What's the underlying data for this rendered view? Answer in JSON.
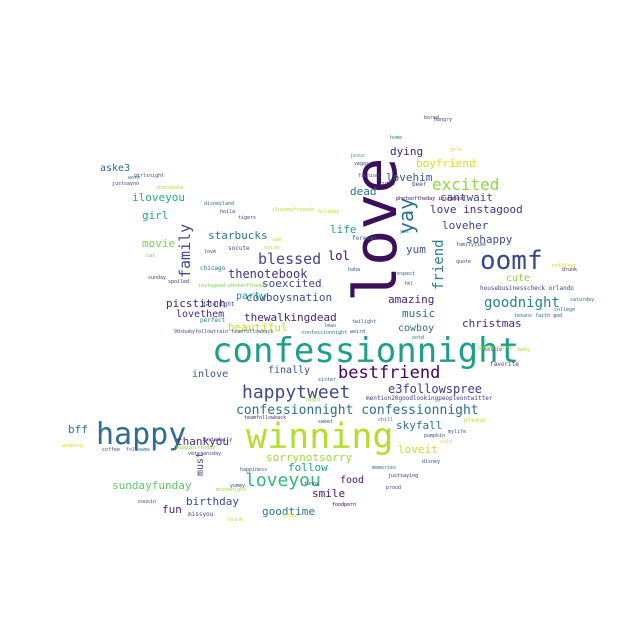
{
  "words": [
    {
      "text": "love",
      "color": "#3b0f59",
      "rot": -90
    },
    {
      "text": "confessionnight",
      "color": "#1f9e89",
      "rot": 0
    },
    {
      "text": "winning",
      "color": "#b5de2b",
      "rot": 0
    },
    {
      "text": "happy",
      "color": "#2d6d8e",
      "rot": 0
    },
    {
      "text": "oomf",
      "color": "#36488a",
      "rot": 0
    },
    {
      "text": "happytweet",
      "color": "#3e4a89",
      "rot": 0
    },
    {
      "text": "bestfriend",
      "color": "#440154",
      "rot": 0
    },
    {
      "text": "loveyou",
      "color": "#35b779",
      "rot": 0
    },
    {
      "text": "excited",
      "color": "#90d743",
      "rot": 0
    },
    {
      "text": "yay",
      "color": "#2c728e",
      "rot": -90
    },
    {
      "text": "family",
      "color": "#3f4788",
      "rot": -90
    },
    {
      "text": "blessed",
      "color": "#414487",
      "rot": 0
    },
    {
      "text": "friend",
      "color": "#2a788e",
      "rot": -90
    },
    {
      "text": "goodnight",
      "color": "#26828e",
      "rot": 0
    },
    {
      "text": "confessionnight confessionnight",
      "color": "#2e6e8e",
      "rot": 0
    },
    {
      "text": "e3followspree",
      "color": "#443983",
      "rot": 0
    },
    {
      "text": "thenotebook",
      "color": "#46327e",
      "rot": 0
    },
    {
      "text": "dying",
      "color": "#482173",
      "rot": 0
    },
    {
      "text": "boyfriend",
      "color": "#d8e219",
      "rot": 0
    },
    {
      "text": "lovehim",
      "color": "#375b8d",
      "rot": 0
    },
    {
      "text": "cantwait",
      "color": "#3e4989",
      "rot": 0
    },
    {
      "text": "love instagood",
      "color": "#46307e",
      "rot": 0
    },
    {
      "text": "loveher",
      "color": "#404588",
      "rot": 0
    },
    {
      "text": "sohappy",
      "color": "#3e4c8a",
      "rot": 0
    },
    {
      "text": "yum",
      "color": "#3a548c",
      "rot": 0
    },
    {
      "text": "cute",
      "color": "#8bd646",
      "rot": 0
    },
    {
      "text": "lol",
      "color": "#440154",
      "rot": 0
    },
    {
      "text": "life",
      "color": "#1fa187",
      "rot": 0
    },
    {
      "text": "dead",
      "color": "#2d718e",
      "rot": 0
    },
    {
      "text": "soexcited",
      "color": "#404588",
      "rot": 0
    },
    {
      "text": "cowboysnation",
      "color": "#3d4d8a",
      "rot": 0
    },
    {
      "text": "amazing",
      "color": "#482374",
      "rot": 0
    },
    {
      "text": "music",
      "color": "#31668e",
      "rot": 0
    },
    {
      "text": "christmas",
      "color": "#482878",
      "rot": 0
    },
    {
      "text": "cowboy",
      "color": "#2e6f8e",
      "rot": 0
    },
    {
      "text": "thewalkingdead",
      "color": "#482475",
      "rot": 0
    },
    {
      "text": "party",
      "color": "#21918c",
      "rot": 0
    },
    {
      "text": "beautiful",
      "color": "#c2df23",
      "rot": 0
    },
    {
      "text": "picstitch",
      "color": "#481d6f",
      "rot": 0
    },
    {
      "text": "lovethem",
      "color": "#472a7a",
      "rot": 0
    },
    {
      "text": "starbucks",
      "color": "#2a768e",
      "rot": 0
    },
    {
      "text": "movie",
      "color": "#7ad151",
      "rot": 0
    },
    {
      "text": "girl",
      "color": "#20a386",
      "rot": 0
    },
    {
      "text": "iloveyou",
      "color": "#26ad81",
      "rot": 0
    },
    {
      "text": "aske3",
      "color": "#2f6c8e",
      "rot": 0
    },
    {
      "text": "inlove",
      "color": "#3a538b",
      "rot": 0
    },
    {
      "text": "finally",
      "color": "#3b518b",
      "rot": 0
    },
    {
      "text": "skyfall",
      "color": "#2c718e",
      "rot": 0
    },
    {
      "text": "loveit",
      "color": "#c8e020",
      "rot": 0
    },
    {
      "text": "sorrynotsorry",
      "color": "#a0da39",
      "rot": 0
    },
    {
      "text": "follow",
      "color": "#1fa088",
      "rot": 0
    },
    {
      "text": "smile",
      "color": "#471164",
      "rot": 0
    },
    {
      "text": "food",
      "color": "#471365",
      "rot": 0
    },
    {
      "text": "goodtime",
      "color": "#2a788e",
      "rot": 0
    },
    {
      "text": "thankyou",
      "color": "#45337d",
      "rot": 0
    },
    {
      "text": "bff",
      "color": "#2a788e",
      "rot": 0
    },
    {
      "text": "sundayfunday",
      "color": "#5ec962",
      "rot": 0
    },
    {
      "text": "birthday",
      "color": "#3e4a89",
      "rot": 0
    },
    {
      "text": "fun",
      "color": "#481f70",
      "rot": 0
    },
    {
      "text": "must",
      "color": "#424186",
      "rot": -90
    },
    {
      "text": "missyou",
      "color": "#3b528b",
      "rot": 0
    },
    {
      "text": "mention20goodlookingpeopleontwitter",
      "color": "#443983",
      "rot": 0
    },
    {
      "text": "housebusinesscheck orlando",
      "color": "#414487",
      "rot": 0
    },
    {
      "text": "photooftheday instamood",
      "color": "#440154",
      "rot": 0
    },
    {
      "text": "familytime",
      "color": "#3b528b",
      "rot": 0
    },
    {
      "text": "justsayno",
      "color": "#443a83",
      "rot": 0
    },
    {
      "text": "foodporn",
      "color": "#440154",
      "rot": 0
    },
    {
      "text": "favorite",
      "color": "#453781",
      "rot": 0
    },
    {
      "text": "saturday",
      "color": "#2d708e",
      "rot": 0
    },
    {
      "text": "chicago",
      "color": "#2c728e",
      "rot": 0
    },
    {
      "text": "datenight",
      "color": "#3e4989",
      "rot": 0
    },
    {
      "text": "perfect",
      "color": "#27808e",
      "rot": 0
    },
    {
      "text": "forever",
      "color": "#355f8d",
      "rot": 0
    },
    {
      "text": "twilight",
      "color": "#38598c",
      "rot": 0
    },
    {
      "text": "lmao",
      "color": "#2e6e8e",
      "rot": 0
    },
    {
      "text": "instagood photooftheday",
      "color": "#7fd34e",
      "rot": 0
    },
    {
      "text": "90sbabyfollowtrain teamfollowback",
      "color": "#3b528b",
      "rot": 0
    },
    {
      "text": "confessionnight",
      "color": "#2a788e",
      "rot": 0
    },
    {
      "text": "spoiled",
      "color": "#472d7b",
      "rot": 0
    },
    {
      "text": "disneyland",
      "color": "#2d708e",
      "rot": 0
    },
    {
      "text": "tigers",
      "color": "#3f4889",
      "rot": 0
    },
    {
      "text": "socute",
      "color": "#3b528b",
      "rot": 0
    },
    {
      "text": "hoila",
      "color": "#46327e",
      "rot": 0
    },
    {
      "text": "jesus",
      "color": "#27ad81",
      "rot": 0
    },
    {
      "text": "beer",
      "color": "#3f4788",
      "rot": 0
    },
    {
      "text": "cutie",
      "color": "#482576",
      "rot": 0
    },
    {
      "text": "fashion",
      "color": "#3b528b",
      "rot": 0
    },
    {
      "text": "vegas",
      "color": "#404688",
      "rot": 0
    },
    {
      "text": "quote",
      "color": "#3e4989",
      "rot": 0
    },
    {
      "text": "respect",
      "color": "#31688e",
      "rot": 0
    },
    {
      "text": "college",
      "color": "#2c728e",
      "rot": 0
    },
    {
      "text": "texans faith god",
      "color": "#2d708e",
      "rot": 0
    },
    {
      "text": "drunk",
      "color": "#472c7a",
      "rot": 0
    },
    {
      "text": "sister",
      "color": "#3b528b",
      "rot": 0
    },
    {
      "text": "sweet",
      "color": "#3e4a89",
      "rot": 0
    },
    {
      "text": "chill",
      "color": "#2d708e",
      "rot": 0
    },
    {
      "text": "memories",
      "color": "#2e6e8e",
      "rot": 0
    },
    {
      "text": "justsaying",
      "color": "#46327e",
      "rot": 0
    },
    {
      "text": "happiness",
      "color": "#3b528b",
      "rot": 0
    },
    {
      "text": "happybirthday",
      "color": "#8fd744",
      "rot": 0
    },
    {
      "text": "veteransday",
      "color": "#3f4788",
      "rot": 0
    },
    {
      "text": "cousin",
      "color": "#453882",
      "rot": 0
    },
    {
      "text": "proud",
      "color": "#433e85",
      "rot": 0
    },
    {
      "text": "disney",
      "color": "#404688",
      "rot": 0
    },
    {
      "text": "funny",
      "color": "#3d4e8a",
      "rot": 0
    },
    {
      "text": "coffee",
      "color": "#3d4d8a",
      "rot": 0
    },
    {
      "text": "followme",
      "color": "#31688e",
      "rot": 0
    },
    {
      "text": "sunday",
      "color": "#3c4f8a",
      "rot": 0
    },
    {
      "text": "chocolate",
      "color": "#a5db36",
      "rot": 0
    },
    {
      "text": "girlsnight",
      "color": "#3e4a89",
      "rot": 0
    },
    {
      "text": "work",
      "color": "#2a768e",
      "rot": 0
    },
    {
      "text": "hungry",
      "color": "#423f85",
      "rot": 0
    },
    {
      "text": "bored",
      "color": "#3e4989",
      "rot": 0
    },
    {
      "text": "pumpkin",
      "color": "#3b528b",
      "rot": 0
    },
    {
      "text": "selfie",
      "color": "#3e4a89",
      "rot": 0
    },
    {
      "text": "please",
      "color": "#c8e020",
      "rot": 0
    },
    {
      "text": "cold",
      "color": "#b8de29",
      "rot": 0
    },
    {
      "text": "wedding",
      "color": "#d5e21a",
      "rot": 0
    },
    {
      "text": "yummy",
      "color": "#37598c",
      "rot": 0
    },
    {
      "text": "teamfollowback",
      "color": "#482979",
      "rot": 0
    },
    {
      "text": "movienight",
      "color": "#a2da37",
      "rot": 0
    },
    {
      "text": "noise",
      "color": "#b0dd2f",
      "rot": 0
    },
    {
      "text": "home",
      "color": "#25858e",
      "rot": 0
    },
    {
      "text": "haha",
      "color": "#39568c",
      "rot": 0
    },
    {
      "text": "yes",
      "color": "#2d718e",
      "rot": 0
    },
    {
      "text": "ootd",
      "color": "#2c728e",
      "rot": 0
    },
    {
      "text": "weird",
      "color": "#3e4c8a",
      "rot": 0
    },
    {
      "text": "mylife",
      "color": "#3b528b",
      "rot": 0
    },
    {
      "text": "fml",
      "color": "#2f6c8e",
      "rot": 0
    },
    {
      "text": "instadaily",
      "color": "#472e7c",
      "rot": 0
    },
    {
      "text": "love",
      "color": "#424086",
      "rot": 0
    },
    {
      "text": "yolo",
      "color": "#c0df25",
      "rot": 0
    },
    {
      "text": "sad",
      "color": "#c2df23",
      "rot": 0
    },
    {
      "text": "goodmorning",
      "color": "#9bd93c",
      "rot": 0
    },
    {
      "text": "nofilter",
      "color": "#d0e11c",
      "rot": 0
    },
    {
      "text": "holiday",
      "color": "#c0df25",
      "rot": 0
    },
    {
      "text": "drink",
      "color": "#bade28",
      "rot": 0
    },
    {
      "text": "today",
      "color": "#e2e418",
      "rot": 0
    },
    {
      "text": "cat",
      "color": "#70cf57",
      "rot": 0
    },
    {
      "text": "baby",
      "color": "#a8db34",
      "rot": 0
    },
    {
      "text": "night",
      "color": "#8fd744",
      "rot": 0
    },
    {
      "text": "ilovemyfriends",
      "color": "#b2dd2d",
      "rot": 0
    }
  ]
}
